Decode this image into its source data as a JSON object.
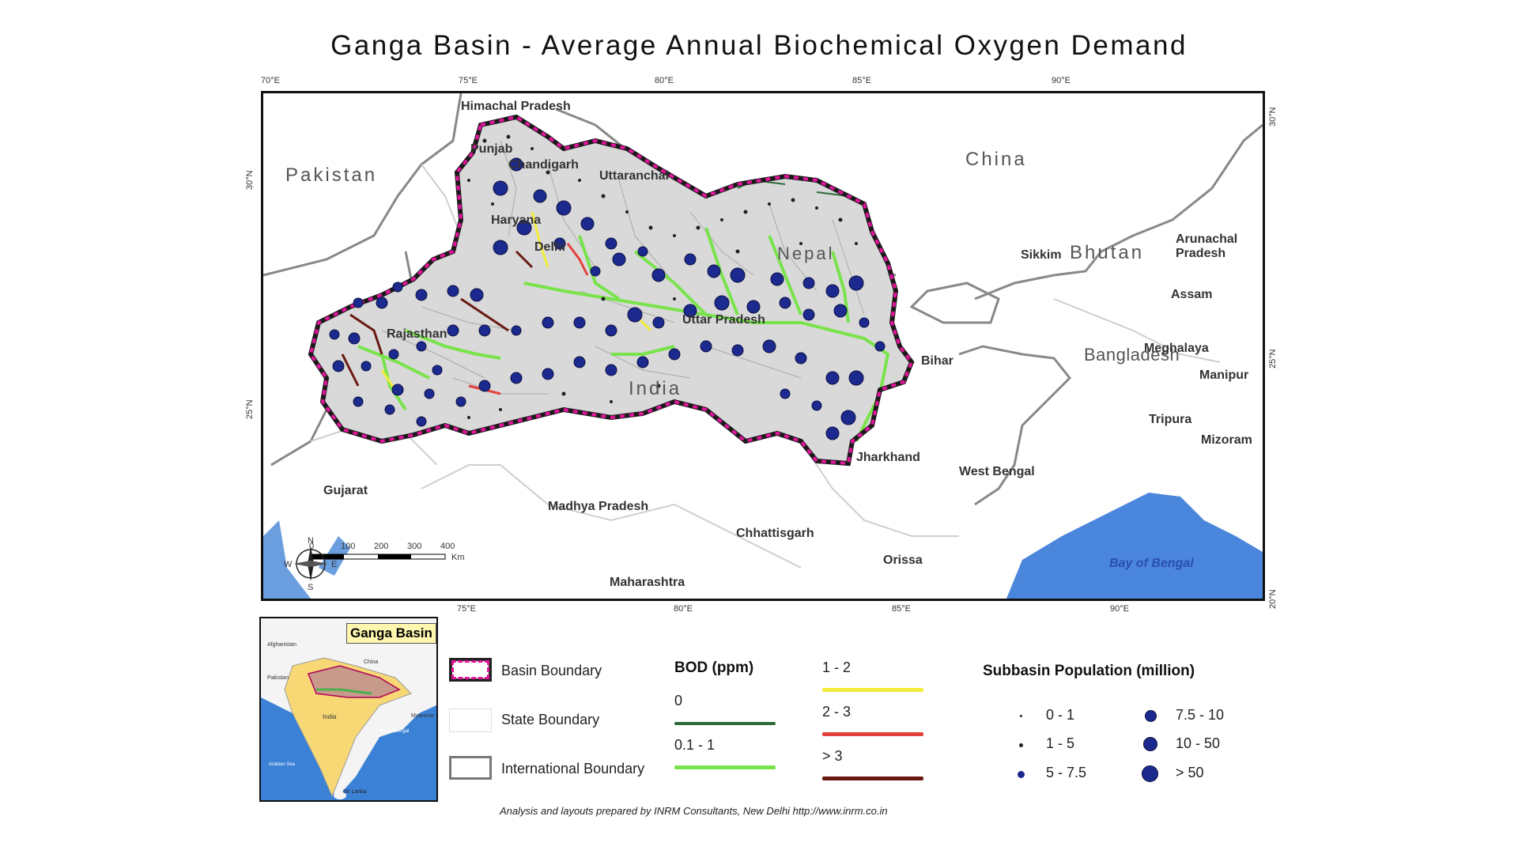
{
  "title": "Ganga Basin - Average Annual Biochemical Oxygen Demand",
  "top_ticks": [
    "70°E",
    "75°E",
    "80°E",
    "85°E",
    "90°E"
  ],
  "bottom_ticks": [
    "75°E",
    "80°E",
    "85°E",
    "90°E"
  ],
  "left_ticks": [
    "30°N",
    "25°N"
  ],
  "right_ticks": [
    "30°N",
    "25°N",
    "20°N"
  ],
  "labels": {
    "countries": [
      "Pakistan",
      "China",
      "Nepal",
      "Bhutan",
      "Bangladesh",
      "India"
    ],
    "states": [
      "Himachal Pradesh",
      "Punjab",
      "Chandigarh",
      "Uttaranchal",
      "Haryana",
      "Delhi",
      "Rajasthan",
      "Uttar Pradesh",
      "Sikkim",
      "Arunachal",
      "Pradesh",
      "Assam",
      "Meghalaya",
      "Manipur",
      "Tripura",
      "Mizoram",
      "Bihar",
      "Jharkhand",
      "West Bengal",
      "Gujarat",
      "Madhya Pradesh",
      "Chhattisgarh",
      "Orissa",
      "Maharashtra"
    ],
    "sea": "Bay of Bengal"
  },
  "scale_bar": {
    "ticks": [
      "0",
      "100",
      "200",
      "300",
      "400"
    ],
    "unit": "Km"
  },
  "compass": [
    "N",
    "S",
    "E",
    "W"
  ],
  "inset": {
    "title": "Ganga Basin",
    "places": [
      "Afghanistan",
      "Pakistan",
      "China",
      "India",
      "Myanmar",
      "Bay of Bengal",
      "Arabian Sea",
      "Sri Lanka"
    ]
  },
  "legend_boundaries": {
    "items": [
      "Basin Boundary",
      "State Boundary",
      "International Boundary"
    ],
    "colors": {
      "basin": "#d0147f",
      "state": "#d8d8d8",
      "international": "#777777"
    }
  },
  "legend_bod": {
    "title": "BOD (ppm)",
    "classes": [
      {
        "label": "0",
        "color": "#2e6b3a"
      },
      {
        "label": "0.1 - 1",
        "color": "#79e34b"
      },
      {
        "label": "1 - 2",
        "color": "#f2ec3c"
      },
      {
        "label": "2 - 3",
        "color": "#e2413c"
      },
      {
        "label": "> 3",
        "color": "#6a1a12"
      }
    ]
  },
  "legend_population": {
    "title": "Subbasin Population (million)",
    "classes": [
      "0 - 1",
      "1 - 5",
      "5 - 7.5",
      "7.5 - 10",
      "10 - 50",
      "> 50"
    ],
    "color": "#1c2a8f"
  },
  "credit": "Analysis and layouts prepared by INRM Consultants, New Delhi    http://www.inrm.co.in"
}
